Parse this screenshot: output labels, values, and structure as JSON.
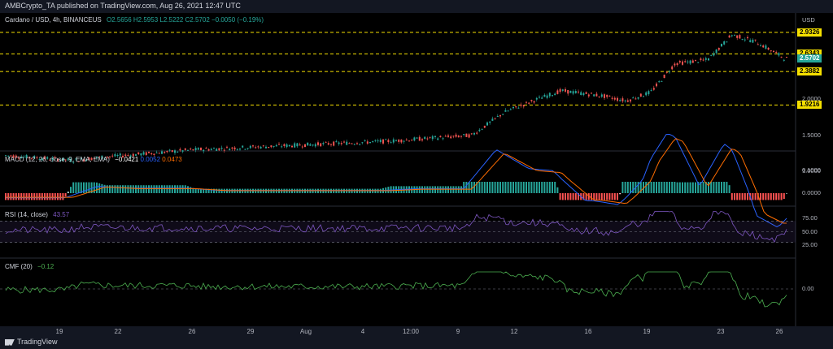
{
  "header": {
    "published": "AMBCrypto_TA published on TradingView.com, Aug 26, 2021 12:47 UTC"
  },
  "main_pane": {
    "symbol": "Cardano / USD, 4h, BINANCEUS",
    "o": "O2.5656",
    "h": "H2.5953",
    "l": "L2.5222",
    "c": "C2.5702",
    "change": "−0.0050 (−0.19%)",
    "currency": "USD",
    "levels": [
      {
        "label": "2.9326",
        "value": 2.9326,
        "color": "#f5e000",
        "text_color": "#000"
      },
      {
        "label": "2.6343",
        "value": 2.6343,
        "color": "#f5e000",
        "text_color": "#000"
      },
      {
        "label": "2.5702",
        "value": 2.5702,
        "color": "#26a69a",
        "text_color": "#fff"
      },
      {
        "label": "2.3882",
        "value": 2.3882,
        "color": "#f5e000",
        "text_color": "#000"
      },
      {
        "label": "1.9216",
        "value": 1.9216,
        "color": "#f5e000",
        "text_color": "#000"
      }
    ],
    "y_ticks": [
      {
        "label": "2.0000",
        "value": 2.0
      },
      {
        "label": "1.5000",
        "value": 1.5
      },
      {
        "label": "1.0000",
        "value": 1.0
      }
    ]
  },
  "macd_pane": {
    "name": "MACD (12, 26, close, 9, EMA, EMA)",
    "v1": "−0.0421",
    "v2": "0.0052",
    "v3": "0.0473",
    "y_ticks": [
      {
        "label": "0.1000",
        "value": 0.1
      },
      {
        "label": "0.0000",
        "value": 0.0
      }
    ]
  },
  "rsi_pane": {
    "name": "RSI (14, close)",
    "value": "43.57",
    "y_ticks": [
      {
        "label": "75.00",
        "value": 75
      },
      {
        "label": "50.00",
        "value": 50
      },
      {
        "label": "25.00",
        "value": 25
      }
    ]
  },
  "cmf_pane": {
    "name": "CMF (20)",
    "value": "−0.12",
    "y_ticks": [
      {
        "label": "0.00",
        "value": 0
      }
    ]
  },
  "x_axis": [
    {
      "label": "19",
      "x": 73
    },
    {
      "label": "22",
      "x": 145
    },
    {
      "label": "26",
      "x": 236
    },
    {
      "label": "29",
      "x": 308
    },
    {
      "label": "Aug",
      "x": 376
    },
    {
      "label": "4",
      "x": 446
    },
    {
      "label": "12:00",
      "x": 505
    },
    {
      "label": "9",
      "x": 563
    },
    {
      "label": "12",
      "x": 632
    },
    {
      "label": "16",
      "x": 723
    },
    {
      "label": "19",
      "x": 795
    },
    {
      "label": "23",
      "x": 886
    },
    {
      "label": "26",
      "x": 958
    }
  ],
  "footer": {
    "brand": "TradingView"
  },
  "colors": {
    "up": "#26a69a",
    "down": "#ef5350",
    "macd": "#2962ff",
    "signal": "#ff6d00",
    "rsi": "#7e57c2",
    "cmf": "#4caf50"
  }
}
